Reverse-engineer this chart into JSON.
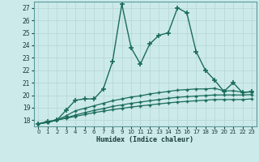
{
  "xlabel": "Humidex (Indice chaleur)",
  "background_color": "#cceaea",
  "grid_color": "#b0d8d8",
  "line_color": "#1a6b5a",
  "x_min": 0,
  "x_max": 23,
  "y_min": 17.5,
  "y_max": 27.5,
  "yticks": [
    18,
    19,
    20,
    21,
    22,
    23,
    24,
    25,
    26,
    27
  ],
  "xtick_labels": [
    "0",
    "1",
    "2",
    "3",
    "4",
    "5",
    "6",
    "7",
    "8",
    "9",
    "10",
    "11",
    "12",
    "13",
    "14",
    "15",
    "16",
    "17",
    "18",
    "19",
    "20",
    "21",
    "22",
    "23"
  ],
  "series": [
    {
      "x": [
        0,
        1,
        2,
        3,
        4,
        5,
        6,
        7,
        8,
        9,
        10,
        11,
        12,
        13,
        14,
        15,
        16,
        17,
        18,
        19,
        20,
        21,
        22,
        23
      ],
      "y": [
        17.7,
        17.9,
        18.0,
        18.8,
        19.6,
        19.7,
        19.7,
        20.5,
        22.7,
        27.3,
        23.8,
        22.5,
        24.1,
        24.8,
        25.0,
        27.0,
        26.6,
        23.5,
        22.0,
        21.2,
        20.3,
        21.0,
        20.2,
        20.3
      ],
      "marker": "+",
      "markersize": 4,
      "linewidth": 1.0,
      "markeredgewidth": 1.2
    },
    {
      "x": [
        0,
        1,
        2,
        3,
        4,
        5,
        6,
        7,
        8,
        9,
        10,
        11,
        12,
        13,
        14,
        15,
        16,
        17,
        18,
        19,
        20,
        21,
        22,
        23
      ],
      "y": [
        17.7,
        17.85,
        18.0,
        18.35,
        18.75,
        18.95,
        19.15,
        19.35,
        19.55,
        19.7,
        19.85,
        19.95,
        20.1,
        20.2,
        20.3,
        20.4,
        20.45,
        20.5,
        20.5,
        20.55,
        20.35,
        20.35,
        20.25,
        20.25
      ],
      "marker": "+",
      "markersize": 3,
      "linewidth": 0.9,
      "markeredgewidth": 1.0
    },
    {
      "x": [
        0,
        1,
        2,
        3,
        4,
        5,
        6,
        7,
        8,
        9,
        10,
        11,
        12,
        13,
        14,
        15,
        16,
        17,
        18,
        19,
        20,
        21,
        22,
        23
      ],
      "y": [
        17.7,
        17.82,
        18.0,
        18.2,
        18.4,
        18.6,
        18.78,
        18.92,
        19.1,
        19.22,
        19.35,
        19.45,
        19.55,
        19.65,
        19.75,
        19.83,
        19.88,
        19.93,
        19.97,
        20.02,
        20.02,
        20.02,
        20.02,
        20.05
      ],
      "marker": "+",
      "markersize": 3,
      "linewidth": 0.9,
      "markeredgewidth": 1.0
    },
    {
      "x": [
        0,
        1,
        2,
        3,
        4,
        5,
        6,
        7,
        8,
        9,
        10,
        11,
        12,
        13,
        14,
        15,
        16,
        17,
        18,
        19,
        20,
        21,
        22,
        23
      ],
      "y": [
        17.7,
        17.82,
        18.0,
        18.15,
        18.3,
        18.45,
        18.6,
        18.72,
        18.84,
        18.94,
        19.05,
        19.14,
        19.22,
        19.3,
        19.38,
        19.45,
        19.5,
        19.55,
        19.6,
        19.65,
        19.65,
        19.65,
        19.65,
        19.7
      ],
      "marker": "+",
      "markersize": 3,
      "linewidth": 0.9,
      "markeredgewidth": 1.0
    }
  ]
}
